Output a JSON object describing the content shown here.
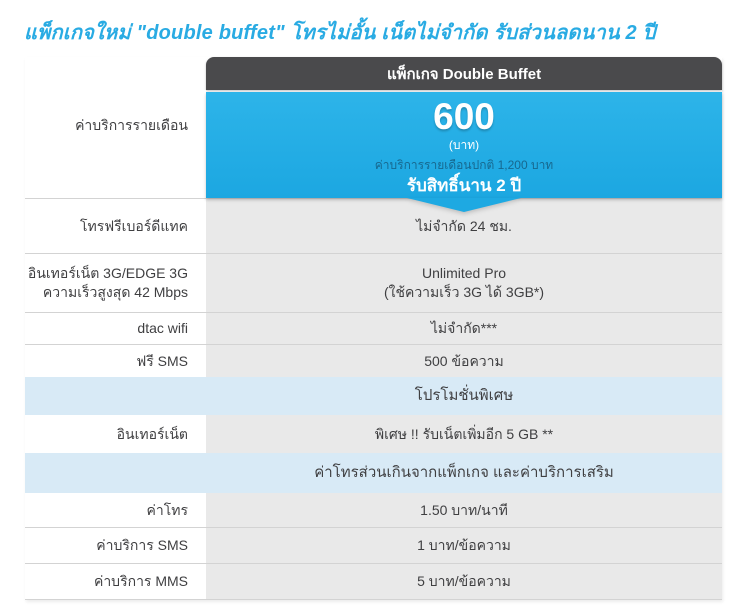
{
  "page": {
    "title": "แพ็กเกจใหม่ \"double buffet\" โทรไม่อั้น เน็ตไม่จำกัด รับส่วนลดนาน 2 ปี"
  },
  "colors": {
    "accent_cyan": "#29abe3",
    "header_dark": "#4a4a4c",
    "band_blue": "#d8eaf6",
    "value_cell_gray": "#e9e9e9"
  },
  "table": {
    "header_title": "แพ็กเกจ Double Buffet",
    "price": {
      "label": "ค่าบริการรายเดือน",
      "amount": "600",
      "unit": "(บาท)",
      "note": "ค่าบริการรายเดือนปกติ 1,200 บาท",
      "duration": "รับสิทธิ์นาน 2 ปี"
    },
    "rows": [
      {
        "label": "โทรฟรีเบอร์ดีแทค",
        "value": "ไม่จำกัด 24 ชม."
      },
      {
        "label_line1": "อินเทอร์เน็ต 3G/EDGE 3G",
        "label_line2": "ความเร็วสูงสุด 42 Mbps",
        "value_line1": "Unlimited Pro",
        "value_line2": "(ใช้ความเร็ว 3G ได้ 3GB*)"
      },
      {
        "label": "dtac wifi",
        "value": "ไม่จำกัด***"
      },
      {
        "label": "ฟรี SMS",
        "value": "500 ข้อความ"
      },
      {
        "title": "โปรโมชั่นพิเศษ"
      },
      {
        "label": "อินเทอร์เน็ต",
        "value": "พิเศษ !! รับเน็ตเพิ่มอีก 5 GB **"
      },
      {
        "title": "ค่าโทรส่วนเกินจากแพ็กเกจ และค่าบริการเสริม"
      },
      {
        "label": "ค่าโทร",
        "value": "1.50 บาท/นาที"
      },
      {
        "label": "ค่าบริการ SMS",
        "value": "1 บาท/ข้อความ"
      },
      {
        "label": "ค่าบริการ MMS",
        "value": "5 บาท/ข้อความ"
      }
    ]
  }
}
